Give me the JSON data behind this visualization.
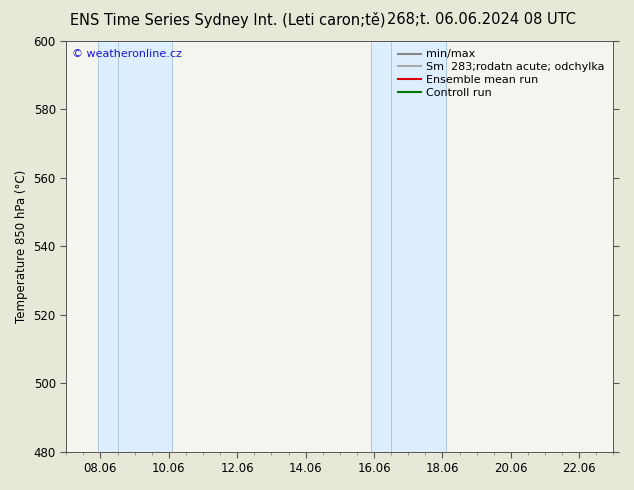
{
  "title_left": "ENS Time Series Sydney Int. (Leti caron;tě)",
  "title_right": "268;t. 06.06.2024 08 UTC",
  "ylabel": "Temperature 850 hPa (°C)",
  "ylim": [
    480,
    600
  ],
  "yticks": [
    480,
    500,
    520,
    540,
    560,
    580,
    600
  ],
  "xtick_labels": [
    "08.06",
    "10.06",
    "12.06",
    "14.06",
    "16.06",
    "18.06",
    "20.06",
    "22.06"
  ],
  "xtick_positions": [
    1,
    3,
    5,
    7,
    9,
    11,
    13,
    15
  ],
  "xlim": [
    0,
    16
  ],
  "shade_bands": [
    {
      "x_start": 0.92,
      "x_end": 1.5,
      "border_left": true,
      "border_right": false
    },
    {
      "x_start": 1.5,
      "x_end": 3.1,
      "border_left": false,
      "border_right": true
    },
    {
      "x_start": 8.92,
      "x_end": 9.5,
      "border_left": true,
      "border_right": false
    },
    {
      "x_start": 9.5,
      "x_end": 11.1,
      "border_left": false,
      "border_right": true
    }
  ],
  "shade_color": "#ddeeff",
  "shade_border_color": "#b0c8dc",
  "watermark_text": "© weatheronline.cz",
  "watermark_color": "#1a1acc",
  "legend_entries": [
    {
      "label": "min/max",
      "color": "#888888",
      "lw": 1.5
    },
    {
      "label": "Sm  283;rodatn acute; odchylka",
      "color": "#aaaaaa",
      "lw": 1.5
    },
    {
      "label": "Ensemble mean run",
      "color": "#dd0000",
      "lw": 1.5
    },
    {
      "label": "Controll run",
      "color": "#007700",
      "lw": 1.5
    }
  ],
  "bg_color": "#e8e8d8",
  "axes_bg_color": "#f5f5f0",
  "title_fontsize": 10.5,
  "tick_fontsize": 8.5,
  "ylabel_fontsize": 8.5,
  "legend_fontsize": 8
}
